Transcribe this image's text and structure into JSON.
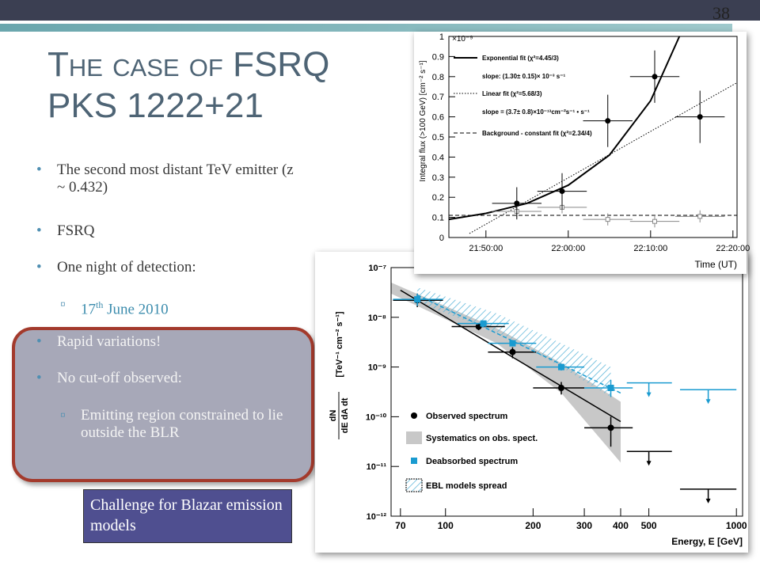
{
  "slide": {
    "number": "38",
    "title_line1": "The case of FSRQ",
    "title_line2": "PKS 1222+21",
    "bullets": [
      "The second most distant TeV emitter (z ~ 0.432)",
      "FSRQ",
      "One night of detection:"
    ],
    "date": {
      "day": "17",
      "suffix": "th",
      "rest": " June 2010"
    },
    "boxed_bullets": [
      "Rapid variations!",
      "No cut-off observed:"
    ],
    "boxed_sub": "Emitting region constrained to lie outside the BLR",
    "callout": "Challenge for Blazar emission models"
  },
  "chart_data": [
    {
      "type": "scatter",
      "scale_label": "×10⁻⁹",
      "y_label": "Integral flux (>100 GeV) [cm⁻² s⁻¹]",
      "x_label": "Time (UT)",
      "xlim": [
        "21:45:30",
        "22:20:30"
      ],
      "xticks": [
        "21:50:00",
        "22:00:00",
        "22:10:00",
        "22:20:00"
      ],
      "ylim": [
        0,
        1
      ],
      "yticks": [
        0,
        0.1,
        0.2,
        0.3,
        0.4,
        0.5,
        0.6,
        0.7,
        0.8,
        0.9,
        1
      ],
      "points": {
        "x": [
          "21:53:45",
          "21:59:15",
          "22:04:48",
          "22:10:30",
          "22:16:00"
        ],
        "values": [
          0.17,
          0.23,
          0.58,
          0.8,
          0.6
        ],
        "errors": [
          0.08,
          0.09,
          0.13,
          0.13,
          0.13
        ],
        "xerr": [
          3,
          3,
          3,
          3,
          3
        ],
        "color": "#000000"
      },
      "background_points": {
        "x": [
          "21:53:45",
          "21:59:15",
          "22:04:48",
          "22:10:30",
          "22:16:00"
        ],
        "values": [
          0.13,
          0.15,
          0.09,
          0.08,
          0.105
        ],
        "errors": [
          0.03,
          0.03,
          0.03,
          0.03,
          0.03
        ],
        "xerr": [
          3,
          3,
          3,
          3,
          3
        ],
        "color": "#888888"
      },
      "fits": [
        {
          "name": "Exponential fit (χ²=4.45/3)",
          "slope_label": "slope: (1.30± 0.15)× 10⁻³ s⁻¹",
          "style": "solid",
          "x": [
            "21:45:30",
            "21:50:00",
            "21:55:00",
            "22:00:00",
            "22:05:00",
            "22:10:00",
            "22:13:30"
          ],
          "values": [
            0.09,
            0.12,
            0.17,
            0.26,
            0.41,
            0.68,
            1.0
          ]
        },
        {
          "name": "Linear fit (χ²=5.68/3)",
          "slope_label": "slope = (3.7± 0.8)×10⁻¹³cm⁻²s⁻¹ • s⁻¹",
          "style": "dotted",
          "x": [
            "21:48:00",
            "22:20:30"
          ],
          "values": [
            0.02,
            0.77
          ]
        },
        {
          "name": "Background - constant fit (χ²=2.34/4)",
          "style": "dashed",
          "x": [
            "21:45:30",
            "22:20:30"
          ],
          "values": [
            0.11,
            0.11
          ]
        }
      ]
    },
    {
      "type": "scatter",
      "log_x": true,
      "log_y": true,
      "y_label_num": "dN",
      "y_label_den": "dE dA dt",
      "y_label_units": "[TeV⁻¹ cm⁻² s⁻¹]",
      "x_label": "Energy, E [GeV]",
      "xlim": [
        65,
        1050
      ],
      "xticks": [
        70,
        100,
        200,
        300,
        400,
        500,
        1000
      ],
      "ylim": [
        1e-12,
        1e-07
      ],
      "yticks": [
        {
          "value": 1e-12,
          "label": "10⁻¹²"
        },
        {
          "value": 1e-11,
          "label": "10⁻¹¹"
        },
        {
          "value": 1e-10,
          "label": "10⁻¹⁰"
        },
        {
          "value": 1e-09,
          "label": "10⁻⁹"
        },
        {
          "value": 1e-08,
          "label": "10⁻⁸"
        },
        {
          "value": 1e-07,
          "label": "10⁻⁷"
        }
      ],
      "series": [
        {
          "name": "Observed spectrum",
          "color": "#000000",
          "marker": "circle",
          "x": [
            80,
            130,
            170,
            250,
            370
          ],
          "x_low": [
            66,
            105,
            140,
            200,
            300
          ],
          "x_high": [
            98,
            160,
            205,
            300,
            440
          ],
          "values": [
            2.2e-08,
            6.5e-09,
            2e-09,
            3.8e-10,
            6e-11
          ],
          "y_low": [
            1.6e-08,
            5.5e-09,
            1.5e-09,
            2.8e-10,
            2.5e-11
          ],
          "y_high": [
            3e-08,
            7.5e-09,
            2.5e-09,
            5e-10,
            1e-10
          ],
          "ul_x": [
            500,
            800
          ],
          "ul_x_low": [
            420,
            640
          ],
          "ul_x_high": [
            600,
            1000
          ],
          "ul_values": [
            2e-11,
            3.5e-12
          ],
          "fit_x": [
            70,
            400
          ],
          "fit_values": [
            3.5e-08,
            8e-11
          ],
          "fit_style": "solid"
        },
        {
          "name": "Deabsorbed spectrum",
          "color": "#1a9bd0",
          "marker": "square",
          "x": [
            80,
            135,
            170,
            250,
            370
          ],
          "x_low": [
            66,
            110,
            140,
            205,
            300
          ],
          "x_high": [
            98,
            165,
            205,
            300,
            440
          ],
          "values": [
            2.3e-08,
            7.5e-09,
            3e-09,
            1e-09,
            3.8e-10
          ],
          "y_low": [
            1.7e-08,
            6.5e-09,
            2.6e-09,
            8.5e-10,
            2.5e-10
          ],
          "y_high": [
            3e-08,
            8.5e-09,
            3.5e-09,
            1.15e-09,
            5.5e-10
          ],
          "ul_x": [
            500,
            800
          ],
          "ul_x_low": [
            420,
            640
          ],
          "ul_x_high": [
            600,
            1000
          ],
          "ul_values": [
            4.8e-10,
            3.5e-10
          ],
          "fit_x": [
            80,
            400
          ],
          "fit_values": [
            2.8e-08,
            3e-10
          ],
          "fit_style": "dashed"
        }
      ],
      "bands": [
        {
          "name": "Systematics on obs. spect.",
          "color": "#c8c8c8",
          "style": "fill",
          "x": [
            65,
            150,
            250,
            400
          ],
          "low": [
            3e-08,
            3e-09,
            3e-10,
            1.2e-11
          ],
          "high": [
            5e-08,
            6e-09,
            1.2e-09,
            2e-10
          ]
        },
        {
          "name": "EBL models spread",
          "color": "#5ab4d8",
          "style": "hatch",
          "x": [
            80,
            150,
            250,
            370
          ],
          "low": [
            2e-08,
            5e-09,
            1e-09,
            2.5e-10
          ],
          "high": [
            4e-08,
            1.2e-08,
            3e-09,
            1e-09
          ]
        }
      ]
    }
  ]
}
